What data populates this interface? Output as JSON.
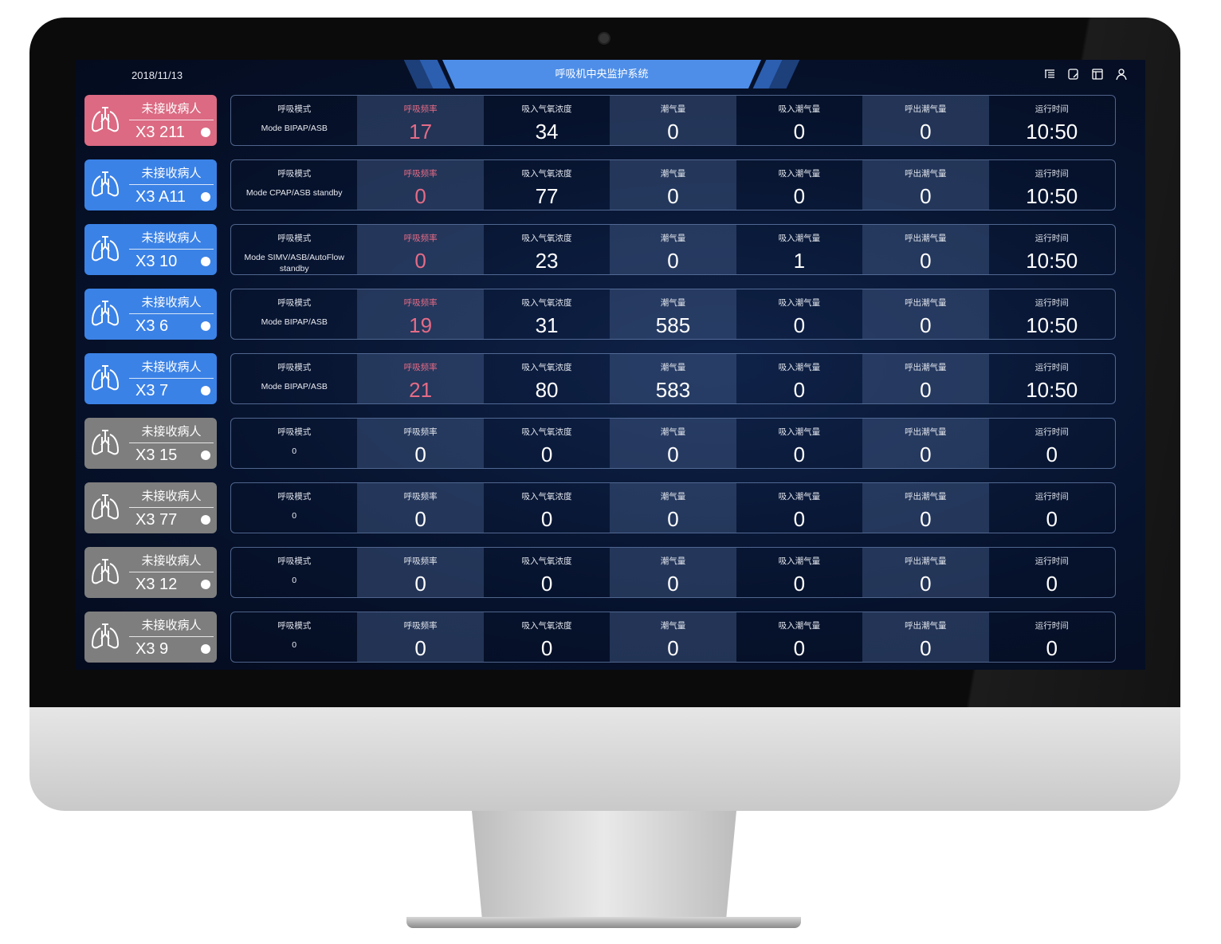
{
  "header": {
    "date": "2018/11/13",
    "title": "呼吸机中央监护系统",
    "icons": [
      "list-icon",
      "edit-icon",
      "layout-icon",
      "user-icon"
    ]
  },
  "colors": {
    "pink": "#db6a82",
    "blue": "#3b82e6",
    "gray": "#7e7e7e",
    "accent": "#e56b86",
    "title": "#4e8ee8"
  },
  "columns": [
    "呼吸模式",
    "呼吸频率",
    "吸入气氧浓度",
    "潮气量",
    "吸入潮气量",
    "呼出潮气量",
    "运行时间"
  ],
  "rows": [
    {
      "status": "pink",
      "name": "未接收病人",
      "bed": "X3 211",
      "mode": "Mode BIPAP/ASB",
      "v": [
        "17",
        "34",
        "0",
        "0",
        "0",
        "10:50"
      ],
      "alert": true
    },
    {
      "status": "blue",
      "name": "未接收病人",
      "bed": "X3 A11",
      "mode": "Mode CPAP/ASB standby",
      "v": [
        "0",
        "77",
        "0",
        "0",
        "0",
        "10:50"
      ],
      "alert": true
    },
    {
      "status": "blue",
      "name": "未接收病人",
      "bed": "X3 10",
      "mode": "Mode SIMV/ASB/AutoFlow standby",
      "v": [
        "0",
        "23",
        "0",
        "1",
        "0",
        "10:50"
      ],
      "alert": true
    },
    {
      "status": "blue",
      "name": "未接收病人",
      "bed": "X3 6",
      "mode": "Mode BIPAP/ASB",
      "v": [
        "19",
        "31",
        "585",
        "0",
        "0",
        "10:50"
      ],
      "alert": true
    },
    {
      "status": "blue",
      "name": "未接收病人",
      "bed": "X3 7",
      "mode": "Mode BIPAP/ASB",
      "v": [
        "21",
        "80",
        "583",
        "0",
        "0",
        "10:50"
      ],
      "alert": true
    },
    {
      "status": "gray",
      "name": "未接收病人",
      "bed": "X3 15",
      "mode": "0",
      "v": [
        "0",
        "0",
        "0",
        "0",
        "0",
        "0"
      ],
      "alert": false
    },
    {
      "status": "gray",
      "name": "未接收病人",
      "bed": "X3 77",
      "mode": "0",
      "v": [
        "0",
        "0",
        "0",
        "0",
        "0",
        "0"
      ],
      "alert": false
    },
    {
      "status": "gray",
      "name": "未接收病人",
      "bed": "X3 12",
      "mode": "0",
      "v": [
        "0",
        "0",
        "0",
        "0",
        "0",
        "0"
      ],
      "alert": false
    },
    {
      "status": "gray",
      "name": "未接收病人",
      "bed": "X3 9",
      "mode": "0",
      "v": [
        "0",
        "0",
        "0",
        "0",
        "0",
        "0"
      ],
      "alert": false
    }
  ]
}
